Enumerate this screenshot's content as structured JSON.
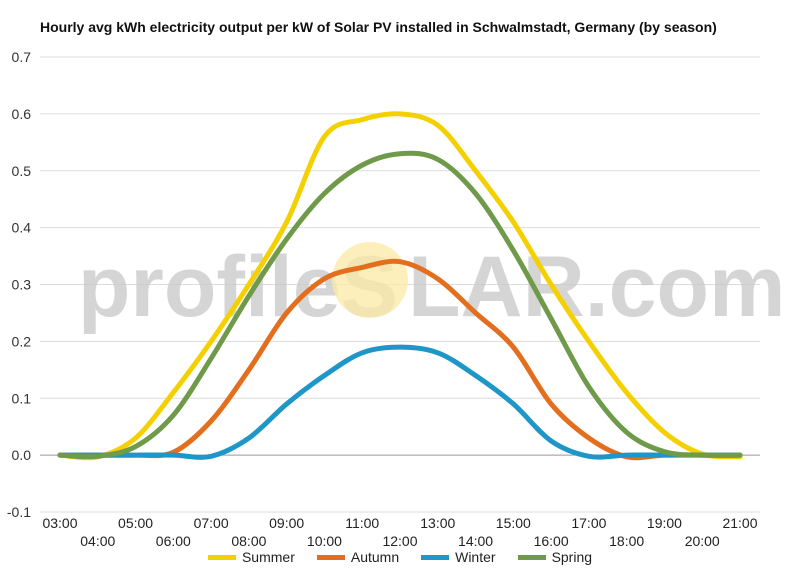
{
  "chart_data": {
    "type": "line",
    "title": "Hourly avg kWh electricity output per kW of Solar PV installed in Schwalmstadt, Germany (by season)",
    "xlabel": "",
    "ylabel": "",
    "ylim": [
      -0.1,
      0.7
    ],
    "yticks": [
      "0.7",
      "0.6",
      "0.5",
      "0.4",
      "0.3",
      "0.2",
      "0.1",
      "0.0",
      "-0.1"
    ],
    "x": [
      "03:00",
      "04:00",
      "05:00",
      "06:00",
      "07:00",
      "08:00",
      "09:00",
      "10:00",
      "11:00",
      "12:00",
      "13:00",
      "14:00",
      "15:00",
      "16:00",
      "17:00",
      "18:00",
      "19:00",
      "20:00",
      "21:00"
    ],
    "grid": true,
    "legend_position": "bottom",
    "series": [
      {
        "name": "Summer",
        "color": "#f5d000",
        "values": [
          0.0,
          -0.003,
          0.03,
          0.11,
          0.2,
          0.3,
          0.41,
          0.56,
          0.59,
          0.6,
          0.58,
          0.5,
          0.41,
          0.3,
          0.2,
          0.11,
          0.04,
          0.002,
          -0.003
        ]
      },
      {
        "name": "Autumn",
        "color": "#e36f1e",
        "values": [
          0.0,
          0.0,
          0.0,
          0.005,
          0.06,
          0.15,
          0.25,
          0.31,
          0.33,
          0.34,
          0.31,
          0.25,
          0.19,
          0.09,
          0.03,
          -0.003,
          0.0,
          0.0,
          0.0
        ]
      },
      {
        "name": "Winter",
        "color": "#1e96c8",
        "values": [
          0.0,
          0.0,
          0.0,
          0.0,
          -0.002,
          0.03,
          0.09,
          0.14,
          0.18,
          0.19,
          0.18,
          0.14,
          0.09,
          0.025,
          -0.002,
          0.0,
          0.0,
          0.0,
          0.0
        ]
      },
      {
        "name": "Spring",
        "color": "#6e9a4a",
        "values": [
          0.0,
          -0.002,
          0.015,
          0.07,
          0.17,
          0.28,
          0.38,
          0.46,
          0.51,
          0.53,
          0.52,
          0.46,
          0.36,
          0.24,
          0.12,
          0.04,
          0.006,
          0.0,
          0.0
        ]
      }
    ]
  },
  "watermark": {
    "text_left": "profileS",
    "text_right": "LAR.com"
  }
}
